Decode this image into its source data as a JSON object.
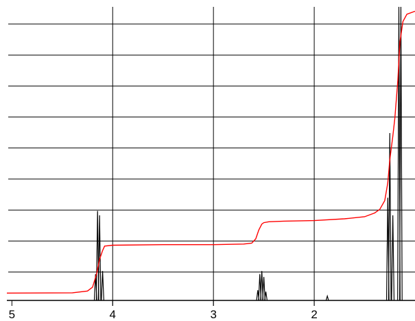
{
  "chart_data": {
    "type": "line",
    "title": "",
    "xlabel": "",
    "ylabel": "",
    "x_reversed": true,
    "xlim": [
      5.05,
      1.0
    ],
    "ylim": [
      0,
      100
    ],
    "x_ticks": [
      5,
      4,
      3,
      2
    ],
    "x_tick_labels": [
      "5",
      "4",
      "3",
      "2"
    ],
    "y_gridlines": 10,
    "grid": true,
    "colors": {
      "spectrum": "#000000",
      "integral": "#ff0000",
      "grid": "#000000"
    },
    "peaks": [
      {
        "x": 4.15,
        "y": 30.5
      },
      {
        "x": 4.13,
        "y": 29.0
      },
      {
        "x": 4.1,
        "y": 10.0
      },
      {
        "x": 4.17,
        "y": 9.0
      },
      {
        "x": 2.56,
        "y": 3.5
      },
      {
        "x": 2.54,
        "y": 9.0
      },
      {
        "x": 2.52,
        "y": 10.0
      },
      {
        "x": 2.5,
        "y": 8.0
      },
      {
        "x": 2.48,
        "y": 3.0
      },
      {
        "x": 1.87,
        "y": 1.5
      },
      {
        "x": 1.27,
        "y": 35.0
      },
      {
        "x": 1.25,
        "y": 57.0
      },
      {
        "x": 1.22,
        "y": 29.0
      },
      {
        "x": 1.16,
        "y": 100.0
      },
      {
        "x": 1.14,
        "y": 100.0
      }
    ],
    "integral": {
      "x": [
        5.05,
        4.4,
        4.25,
        4.2,
        4.16,
        4.13,
        4.1,
        4.08,
        4.0,
        3.5,
        3.0,
        2.7,
        2.62,
        2.58,
        2.55,
        2.52,
        2.5,
        2.45,
        2.3,
        2.0,
        1.7,
        1.5,
        1.4,
        1.35,
        1.3,
        1.27,
        1.25,
        1.22,
        1.2,
        1.17,
        1.15,
        1.12,
        1.08,
        1.0
      ],
      "y": [
        2.5,
        2.6,
        3.2,
        4.5,
        9.0,
        14.0,
        17.0,
        18.5,
        18.8,
        19.0,
        19.0,
        19.2,
        19.5,
        21.0,
        24.0,
        26.0,
        26.5,
        26.8,
        27.0,
        27.2,
        27.8,
        28.5,
        29.8,
        31.0,
        34.0,
        40.0,
        48.0,
        56.0,
        62.0,
        75.0,
        88.0,
        95.0,
        97.5,
        98.5
      ]
    }
  }
}
